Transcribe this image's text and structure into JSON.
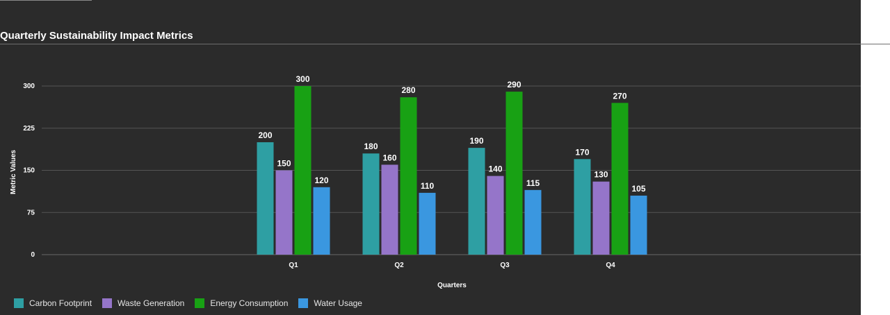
{
  "chart_data": {
    "type": "bar",
    "title": "Quarterly Sustainability Impact Metrics",
    "xlabel": "Quarters",
    "ylabel": "Metric Values",
    "categories": [
      "Q1",
      "Q2",
      "Q3",
      "Q4"
    ],
    "yticks": [
      0,
      75,
      150,
      225,
      300
    ],
    "ylim": [
      0,
      300
    ],
    "grid": true,
    "legend_position": "bottom-left",
    "series": [
      {
        "name": "Carbon Footprint",
        "color": "#2e9fa3",
        "values": [
          200,
          180,
          190,
          170
        ]
      },
      {
        "name": "Waste Generation",
        "color": "#9575c9",
        "values": [
          150,
          160,
          140,
          130
        ]
      },
      {
        "name": "Energy Consumption",
        "color": "#18a114",
        "values": [
          300,
          280,
          290,
          270
        ]
      },
      {
        "name": "Water Usage",
        "color": "#3a97e0",
        "values": [
          120,
          110,
          115,
          105
        ]
      }
    ]
  },
  "colors": {
    "background": "#2b2b2b",
    "gridline": "#555555",
    "text": "#ffffff"
  }
}
